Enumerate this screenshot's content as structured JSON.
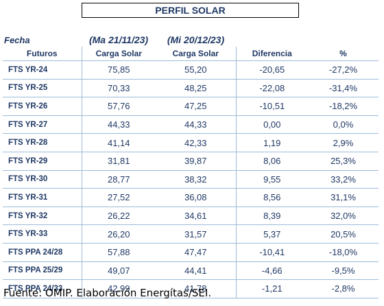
{
  "title": "PERFIL SOLAR",
  "header": {
    "fecha_label": "Fecha",
    "date1": "(Ma 21/11/23)",
    "date2": "(Mi 20/12/23)"
  },
  "columns": [
    "Futuros",
    "Carga Solar",
    "Carga Solar",
    "Diferencia",
    "%"
  ],
  "rows": [
    {
      "label": "FTS YR-24",
      "v1": "75,85",
      "v2": "55,20",
      "diff": "-20,65",
      "pct": "-27,2%"
    },
    {
      "label": "FTS YR-25",
      "v1": "70,33",
      "v2": "48,25",
      "diff": "-22,08",
      "pct": "-31,4%"
    },
    {
      "label": "FTS YR-26",
      "v1": "57,76",
      "v2": "47,25",
      "diff": "-10,51",
      "pct": "-18,2%"
    },
    {
      "label": "FTS YR-27",
      "v1": "44,33",
      "v2": "44,33",
      "diff": "0,00",
      "pct": "0,0%"
    },
    {
      "label": "FTS YR-28",
      "v1": "41,14",
      "v2": "42,33",
      "diff": "1,19",
      "pct": "2,9%"
    },
    {
      "label": "FTS YR-29",
      "v1": "31,81",
      "v2": "39,87",
      "diff": "8,06",
      "pct": "25,3%"
    },
    {
      "label": "FTS YR-30",
      "v1": "28,77",
      "v2": "38,32",
      "diff": "9,55",
      "pct": "33,2%"
    },
    {
      "label": "FTS YR-31",
      "v1": "27,52",
      "v2": "36,08",
      "diff": "8,56",
      "pct": "31,1%"
    },
    {
      "label": "FTS YR-32",
      "v1": "26,22",
      "v2": "34,61",
      "diff": "8,39",
      "pct": "32,0%"
    },
    {
      "label": "FTS YR-33",
      "v1": "26,20",
      "v2": "31,57",
      "diff": "5,37",
      "pct": "20,5%"
    },
    {
      "label": "FTS PPA 24/28",
      "v1": "57,88",
      "v2": "47,47",
      "diff": "-10,41",
      "pct": "-18,0%"
    },
    {
      "label": "FTS PPA 25/29",
      "v1": "49,07",
      "v2": "44,41",
      "diff": "-4,66",
      "pct": "-9,5%"
    },
    {
      "label": "FTS PPA 24/33",
      "v1": "42,99",
      "v2": "41,78",
      "diff": "-1,21",
      "pct": "-2,8%"
    }
  ],
  "source": "Fuente: OMIP. Elaboración Energítas/SEI."
}
